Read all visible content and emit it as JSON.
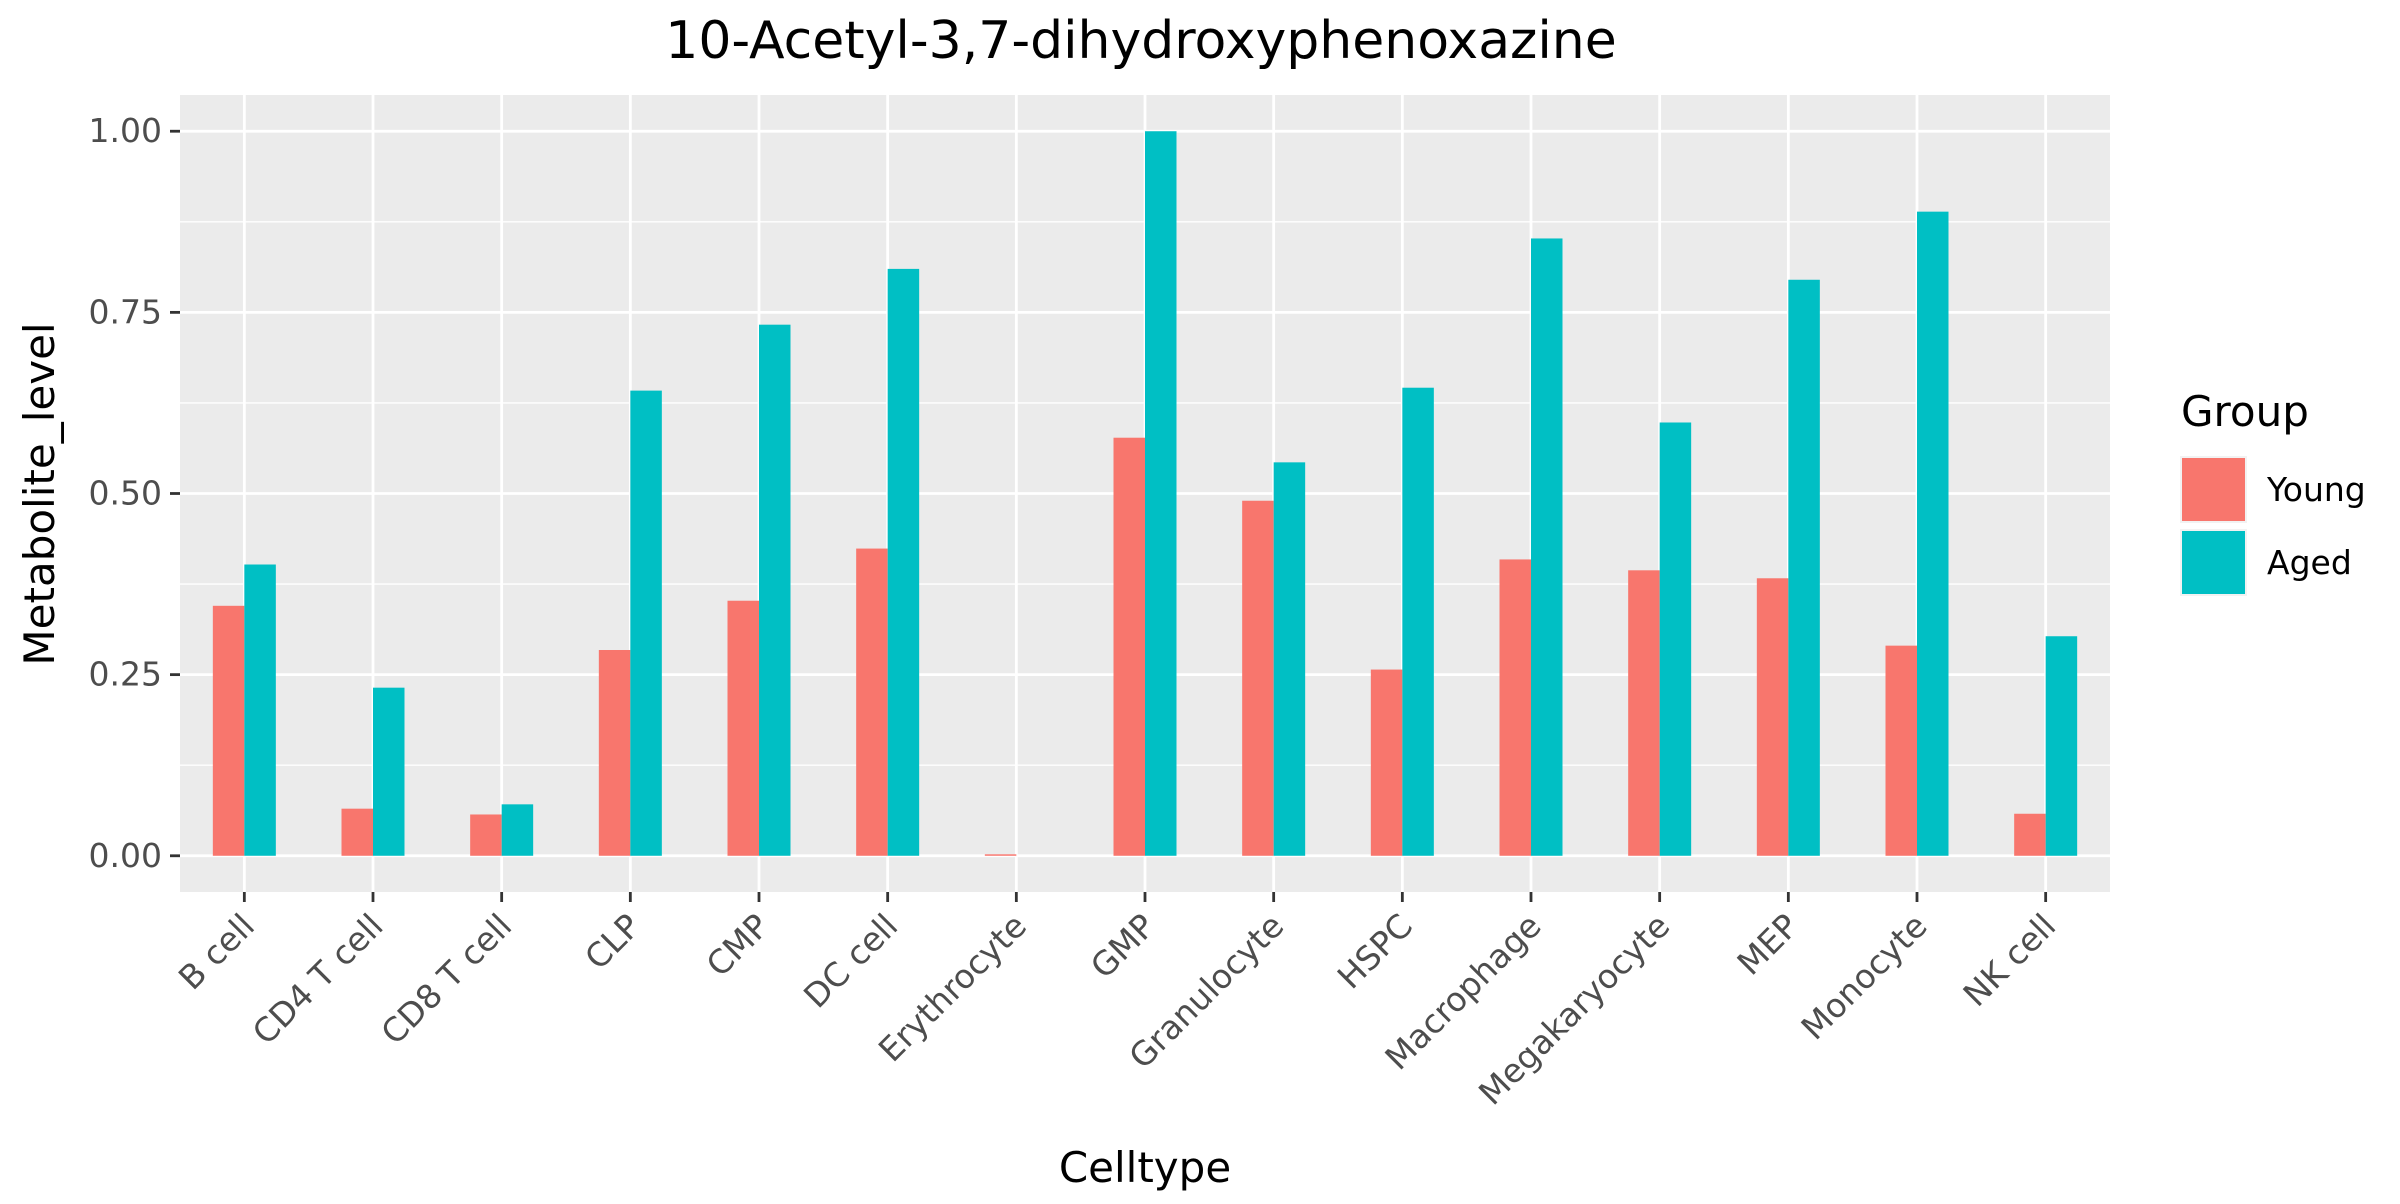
{
  "chart_data": {
    "type": "bar",
    "title": "10-Acetyl-3,7-dihydroxyphenoxazine",
    "xlabel": "Celltype",
    "ylabel": "Metabolite_level",
    "ylim": [
      -0.05,
      1.05
    ],
    "yticks": [
      0.0,
      0.25,
      0.5,
      0.75,
      1.0
    ],
    "ytick_labels": [
      "0.00",
      "0.25",
      "0.50",
      "0.75",
      "1.00"
    ],
    "grid": true,
    "legend": {
      "title": "Group",
      "position": "right"
    },
    "categories": [
      "B cell",
      "CD4 T cell",
      "CD8 T cell",
      "CLP",
      "CMP",
      "DC cell",
      "Erythrocyte",
      "GMP",
      "Granulocyte",
      "HSPC",
      "Macrophage",
      "Megakaryocyte",
      "MEP",
      "Monocyte",
      "NK cell"
    ],
    "series": [
      {
        "name": "Young",
        "color": "#F8766D",
        "values": [
          0.345,
          0.065,
          0.057,
          0.284,
          0.352,
          0.424,
          0.002,
          0.577,
          0.49,
          0.257,
          0.409,
          0.394,
          0.383,
          0.29,
          0.058
        ]
      },
      {
        "name": "Aged",
        "color": "#00BFC4",
        "values": [
          0.402,
          0.232,
          0.071,
          0.642,
          0.733,
          0.81,
          0.0,
          1.0,
          0.543,
          0.646,
          0.852,
          0.598,
          0.795,
          0.889,
          0.303
        ]
      }
    ]
  }
}
